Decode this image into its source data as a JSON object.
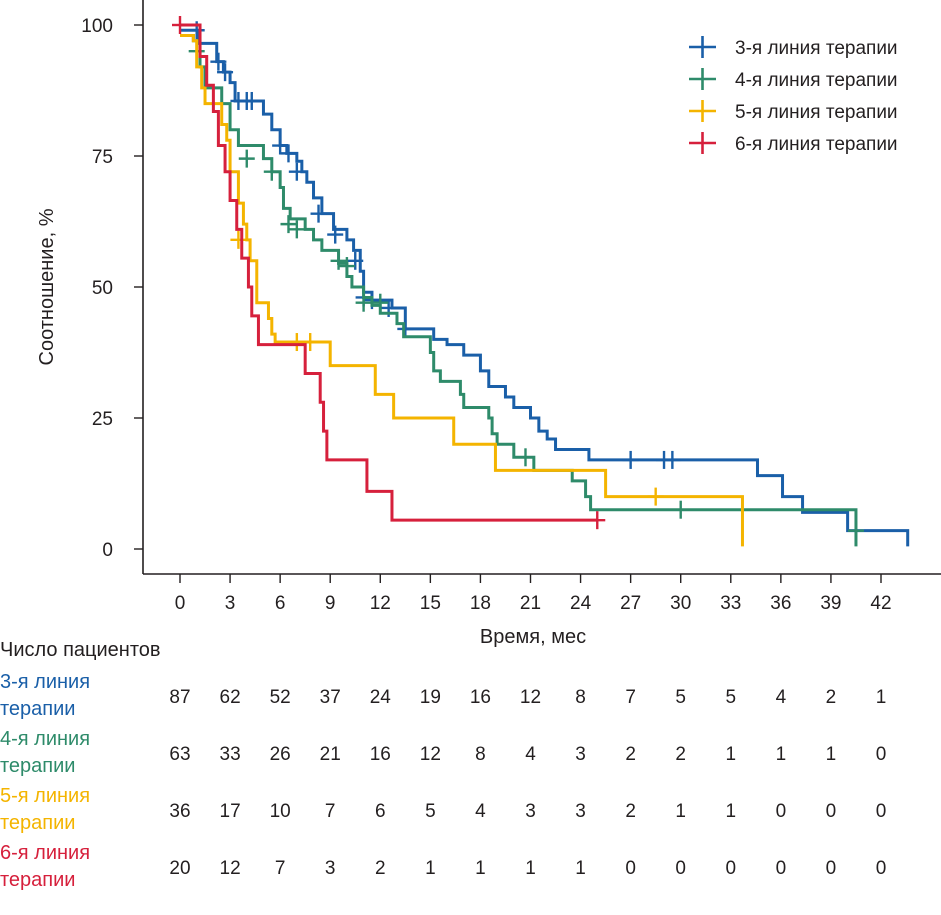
{
  "chart_data": {
    "type": "line",
    "subtype": "kaplan-meier",
    "title": "",
    "xlabel": "Время, мес",
    "ylabel": "Соотношение, %",
    "xlim": [
      0,
      45
    ],
    "ylim": [
      0,
      100
    ],
    "x_ticks": [
      0,
      3,
      6,
      9,
      12,
      15,
      18,
      21,
      24,
      27,
      30,
      33,
      36,
      39,
      42
    ],
    "y_ticks": [
      0,
      25,
      50,
      75,
      100
    ],
    "grid": false,
    "legend_position": "top-right",
    "series": [
      {
        "name": "3-я линия терапии",
        "color": "#1a5fa8",
        "steps": [
          [
            0,
            99
          ],
          [
            1,
            99
          ],
          [
            1.1,
            96.5
          ],
          [
            2,
            96.5
          ],
          [
            2.2,
            93
          ],
          [
            2.6,
            91
          ],
          [
            3,
            89
          ],
          [
            3.3,
            85.5
          ],
          [
            4.5,
            85.5
          ],
          [
            5,
            83
          ],
          [
            5.5,
            80
          ],
          [
            6,
            77
          ],
          [
            6.4,
            75.5
          ],
          [
            7,
            74
          ],
          [
            7.3,
            72
          ],
          [
            7.6,
            70
          ],
          [
            8,
            67
          ],
          [
            8.5,
            64
          ],
          [
            9.2,
            61
          ],
          [
            10,
            59
          ],
          [
            10.4,
            57
          ],
          [
            10.8,
            53
          ],
          [
            11,
            49
          ],
          [
            11.5,
            47.5
          ],
          [
            12.7,
            46
          ],
          [
            13.5,
            42
          ],
          [
            15,
            42
          ],
          [
            15.2,
            40
          ],
          [
            16,
            39
          ],
          [
            17,
            37
          ],
          [
            18,
            34
          ],
          [
            18.5,
            31
          ],
          [
            19.5,
            29
          ],
          [
            20,
            27
          ],
          [
            21,
            25
          ],
          [
            21.5,
            22.5
          ],
          [
            22,
            21
          ],
          [
            22.5,
            19
          ],
          [
            24,
            19
          ],
          [
            24.5,
            17
          ],
          [
            34.6,
            17
          ],
          [
            34.6,
            14
          ],
          [
            36.1,
            14
          ],
          [
            36.1,
            10
          ],
          [
            37.3,
            10
          ],
          [
            37.3,
            7
          ],
          [
            40,
            7
          ],
          [
            40,
            3.5
          ],
          [
            43.6,
            3.5
          ],
          [
            43.6,
            0.5
          ]
        ],
        "censored": [
          [
            1,
            99
          ],
          [
            2.3,
            93
          ],
          [
            2.7,
            91
          ],
          [
            3.5,
            85.5
          ],
          [
            4,
            85.5
          ],
          [
            4.3,
            85.5
          ],
          [
            6,
            77
          ],
          [
            6.5,
            75.5
          ],
          [
            7,
            72
          ],
          [
            8.3,
            64
          ],
          [
            9.3,
            60
          ],
          [
            10.5,
            55
          ],
          [
            11,
            48
          ],
          [
            11.5,
            47.5
          ],
          [
            12.5,
            46
          ],
          [
            13.5,
            42
          ],
          [
            27,
            17
          ],
          [
            29,
            17
          ],
          [
            29.5,
            17
          ]
        ]
      },
      {
        "name": "4-я линия терапии",
        "color": "#2e8b6a",
        "steps": [
          [
            0,
            98
          ],
          [
            0.8,
            97
          ],
          [
            1.2,
            92
          ],
          [
            1.5,
            88
          ],
          [
            2.5,
            85
          ],
          [
            3,
            80
          ],
          [
            3.5,
            77
          ],
          [
            4.3,
            77
          ],
          [
            5,
            74.5
          ],
          [
            5.5,
            72
          ],
          [
            6,
            69
          ],
          [
            6.2,
            65
          ],
          [
            6.6,
            63
          ],
          [
            7.5,
            61
          ],
          [
            8,
            59
          ],
          [
            8.5,
            57
          ],
          [
            9.5,
            54.5
          ],
          [
            10,
            52
          ],
          [
            10.3,
            50
          ],
          [
            11,
            48
          ],
          [
            11.5,
            46.5
          ],
          [
            12,
            45
          ],
          [
            13,
            43
          ],
          [
            13.4,
            40.5
          ],
          [
            14.5,
            40.5
          ],
          [
            15,
            37.5
          ],
          [
            15.2,
            34
          ],
          [
            15.6,
            32
          ],
          [
            16.5,
            32
          ],
          [
            16.8,
            29.5
          ],
          [
            17,
            27
          ],
          [
            18.5,
            25
          ],
          [
            18.7,
            22
          ],
          [
            19,
            20
          ],
          [
            20,
            17.5
          ],
          [
            21,
            17.5
          ],
          [
            21.2,
            15
          ],
          [
            23.5,
            15
          ],
          [
            23.5,
            13
          ],
          [
            24.3,
            10
          ],
          [
            24.6,
            7.5
          ],
          [
            40.5,
            7.5
          ],
          [
            40.5,
            0.5
          ]
        ],
        "censored": [
          [
            1,
            95
          ],
          [
            4,
            74.5
          ],
          [
            5.5,
            72
          ],
          [
            6.5,
            62
          ],
          [
            7,
            61
          ],
          [
            9.5,
            55
          ],
          [
            10,
            54
          ],
          [
            11,
            47
          ],
          [
            12,
            47
          ],
          [
            20.7,
            17.5
          ],
          [
            30,
            7.5
          ],
          [
            40.5,
            3.5
          ]
        ]
      },
      {
        "name": "5-я линия терапии",
        "color": "#f4b400",
        "steps": [
          [
            0,
            98
          ],
          [
            0.8,
            97
          ],
          [
            1,
            92
          ],
          [
            1.3,
            88
          ],
          [
            1.5,
            85
          ],
          [
            2.5,
            81
          ],
          [
            2.8,
            78
          ],
          [
            3,
            72
          ],
          [
            3.5,
            66
          ],
          [
            3.8,
            62
          ],
          [
            4,
            59
          ],
          [
            4.2,
            55
          ],
          [
            4.6,
            47
          ],
          [
            5.3,
            44
          ],
          [
            5.5,
            41
          ],
          [
            5.7,
            39.5
          ],
          [
            9,
            39.5
          ],
          [
            9,
            35
          ],
          [
            11.7,
            35
          ],
          [
            11.7,
            29.5
          ],
          [
            12.8,
            29.5
          ],
          [
            12.8,
            25
          ],
          [
            16.4,
            25
          ],
          [
            16.4,
            20
          ],
          [
            18.9,
            20
          ],
          [
            18.9,
            15
          ],
          [
            25.5,
            15
          ],
          [
            25.5,
            10
          ],
          [
            33.7,
            10
          ],
          [
            33.7,
            0.5
          ]
        ],
        "censored": [
          [
            3.5,
            59
          ],
          [
            7,
            39.5
          ],
          [
            7.8,
            39.5
          ],
          [
            28.5,
            10
          ]
        ]
      },
      {
        "name": "6-я линия терапии",
        "color": "#d6203c",
        "steps": [
          [
            0,
            100
          ],
          [
            1,
            100
          ],
          [
            1.2,
            94
          ],
          [
            1.6,
            88.5
          ],
          [
            2,
            83.5
          ],
          [
            2.3,
            77
          ],
          [
            2.7,
            72
          ],
          [
            3,
            66.5
          ],
          [
            3.4,
            61
          ],
          [
            3.7,
            55.5
          ],
          [
            4.1,
            50
          ],
          [
            4.3,
            44.5
          ],
          [
            4.7,
            39
          ],
          [
            7.5,
            39
          ],
          [
            7.5,
            33.5
          ],
          [
            8.4,
            33.5
          ],
          [
            8.4,
            28
          ],
          [
            8.6,
            22.5
          ],
          [
            8.8,
            17
          ],
          [
            11.2,
            17
          ],
          [
            11.2,
            11
          ],
          [
            12.7,
            11
          ],
          [
            12.7,
            5.5
          ],
          [
            25,
            5.5
          ]
        ],
        "censored": [
          [
            0,
            100
          ],
          [
            25,
            5.5
          ]
        ]
      }
    ],
    "risk_table": {
      "title": "Число пациентов",
      "times": [
        0,
        3,
        6,
        9,
        12,
        15,
        18,
        21,
        24,
        27,
        30,
        33,
        36,
        39,
        42
      ],
      "rows": [
        {
          "label_line1": "3-я линия",
          "label_line2": "терапии",
          "color": "#1a5fa8",
          "values": [
            87,
            62,
            52,
            37,
            24,
            19,
            16,
            12,
            8,
            7,
            5,
            5,
            4,
            2,
            1
          ]
        },
        {
          "label_line1": "4-я линия",
          "label_line2": "терапии",
          "color": "#2e8b6a",
          "values": [
            63,
            33,
            26,
            21,
            16,
            12,
            8,
            4,
            3,
            2,
            2,
            1,
            1,
            1,
            0
          ]
        },
        {
          "label_line1": "5-я линия",
          "label_line2": "терапии",
          "color": "#f4b400",
          "values": [
            36,
            17,
            10,
            7,
            6,
            5,
            4,
            3,
            3,
            2,
            1,
            1,
            0,
            0,
            0
          ]
        },
        {
          "label_line1": "6-я линия",
          "label_line2": "терапии",
          "color": "#d6203c",
          "values": [
            20,
            12,
            7,
            3,
            2,
            1,
            1,
            1,
            1,
            0,
            0,
            0,
            0,
            0,
            0
          ]
        }
      ]
    }
  }
}
